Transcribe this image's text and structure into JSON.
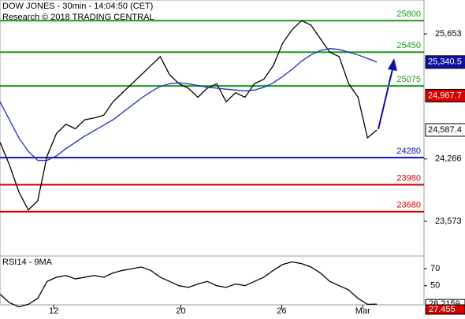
{
  "chart_data": {
    "type": "line",
    "title": "DOW JONES - 30min - 14:04:50 (CET)",
    "subtitle": "Research © 2018 TRADING CENTRAL",
    "x": [
      0,
      1,
      2,
      3,
      4,
      5,
      6,
      7,
      8,
      9,
      10,
      11,
      12,
      13,
      14,
      15,
      16,
      17,
      18,
      19,
      20,
      21,
      22,
      23,
      24,
      25,
      26,
      27,
      28,
      29,
      30,
      31,
      32,
      33,
      34,
      35,
      36,
      37,
      38,
      39,
      40
    ],
    "xlim": [
      0,
      45
    ],
    "xticks": [
      {
        "value": 5.7,
        "label": "12"
      },
      {
        "value": 19.2,
        "label": "20"
      },
      {
        "value": 29.9,
        "label": "26"
      },
      {
        "value": 38.5,
        "label": "Mar"
      }
    ],
    "ylim": [
      23215,
      26029
    ],
    "yticks": [
      {
        "value": 25653,
        "label": "25,653"
      },
      {
        "value": 24266,
        "label": "24,266"
      },
      {
        "value": 23573,
        "label": "23,573"
      }
    ],
    "series": [
      {
        "color": "#000000",
        "values": [
          24450,
          24200,
          23900,
          23700,
          23800,
          24300,
          24550,
          24650,
          24600,
          24700,
          24720,
          24750,
          24900,
          25000,
          25100,
          25200,
          25300,
          25400,
          25200,
          25100,
          25050,
          24950,
          25050,
          25100,
          24900,
          25000,
          24950,
          25100,
          25150,
          25300,
          25550,
          25700,
          25800,
          25750,
          25600,
          25450,
          25400,
          25100,
          24950,
          24500,
          24587.4
        ]
      },
      {
        "color": "#1f2fbf",
        "values": [
          24900,
          24700,
          24500,
          24350,
          24250,
          24250,
          24300,
          24380,
          24450,
          24520,
          24580,
          24640,
          24700,
          24780,
          24860,
          24940,
          25010,
          25070,
          25100,
          25110,
          25100,
          25080,
          25060,
          25050,
          25040,
          25030,
          25020,
          25030,
          25060,
          25110,
          25180,
          25260,
          25350,
          25420,
          25470,
          25490,
          25480,
          25450,
          25420,
          25380,
          25340.5
        ]
      }
    ],
    "levels": [
      {
        "value": 25800,
        "color": "#1c9a1c"
      },
      {
        "value": 25450,
        "color": "#1c9a1c"
      },
      {
        "value": 25075,
        "color": "#1c9a1c"
      },
      {
        "value": 24280,
        "color": "#1010c0"
      },
      {
        "value": 23980,
        "color": "#d40000"
      },
      {
        "value": 23680,
        "color": "#d40000"
      }
    ],
    "price_markers": [
      {
        "value": 25340.5,
        "label": "25,340.5",
        "color": "#1010a0"
      },
      {
        "value": 24967.7,
        "label": "24,967.7",
        "color": "#d40000"
      },
      {
        "value": 24587.4,
        "label": "24,587.4",
        "color": "#ffffff"
      }
    ],
    "rsi": {
      "title": "RSI14 - 9MA",
      "ylim": [
        20,
        85
      ],
      "yticks": [
        70,
        50
      ],
      "values": [
        40,
        30,
        25,
        28,
        35,
        55,
        60,
        62,
        58,
        60,
        62,
        60,
        65,
        68,
        70,
        72,
        68,
        60,
        55,
        50,
        48,
        52,
        55,
        50,
        48,
        52,
        50,
        55,
        60,
        68,
        75,
        78,
        76,
        72,
        65,
        55,
        50,
        45,
        35,
        28,
        28.2159
      ],
      "color": "#000000",
      "markers": [
        {
          "value": 28.2159,
          "label": "28.2159",
          "color": "#ffffff"
        },
        {
          "value": 27.455,
          "label": "27.455",
          "color": "#d40000"
        }
      ]
    }
  }
}
